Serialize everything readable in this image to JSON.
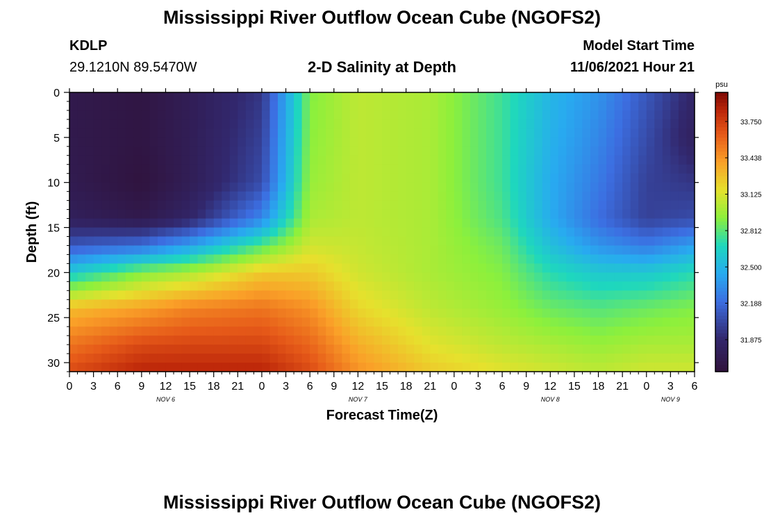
{
  "header": {
    "title": "Mississippi River Outflow Ocean Cube (NGOFS2)",
    "station_id": "KDLP",
    "station_coords": "29.1210N  89.5470W",
    "subtitle": "2-D Salinity at Depth",
    "model_start_label": "Model Start Time",
    "model_start_value": "11/06/2021 Hour 21"
  },
  "footer": {
    "title": "Mississippi River Outflow Ocean Cube (NGOFS2)"
  },
  "chart_data": {
    "type": "heatmap",
    "title": "2-D Salinity at Depth",
    "xlabel": "Forecast Time(Z)",
    "ylabel": "Depth (ft)",
    "x_tick_labels": [
      "0",
      "3",
      "6",
      "9",
      "12",
      "15",
      "18",
      "21",
      "0",
      "3",
      "6",
      "9",
      "12",
      "15",
      "18",
      "21",
      "0",
      "3",
      "6",
      "9",
      "12",
      "15",
      "18",
      "21",
      "0",
      "3",
      "6"
    ],
    "x_ticks_hours": [
      0,
      3,
      6,
      9,
      12,
      15,
      18,
      21,
      24,
      27,
      30,
      33,
      36,
      39,
      42,
      45,
      48,
      51,
      54,
      57,
      60,
      63,
      66,
      69,
      72,
      75,
      78
    ],
    "xlim_hours": [
      0,
      78
    ],
    "day_labels": [
      {
        "text": "NOV 6",
        "hour": 12
      },
      {
        "text": "NOV 7",
        "hour": 36
      },
      {
        "text": "NOV 8",
        "hour": 60
      },
      {
        "text": "NOV 9",
        "hour": 75
      }
    ],
    "y_tick_labels": [
      "0",
      "5",
      "10",
      "15",
      "20",
      "25",
      "30"
    ],
    "y_ticks": [
      0,
      5,
      10,
      15,
      20,
      25,
      30
    ],
    "ylim": [
      0,
      31
    ],
    "y_inverted": true,
    "colorbar": {
      "unit": "psu",
      "min": 31.6,
      "max": 34.0,
      "tick_values": [
        31.875,
        32.188,
        32.5,
        32.812,
        33.125,
        33.438,
        33.75
      ],
      "tick_labels": [
        "31.875",
        "32.188",
        "32.500",
        "32.812",
        "33.125",
        "33.438",
        "33.750"
      ]
    },
    "grid_cells": {
      "nx": 78,
      "ny": 31
    },
    "salinity_field": {
      "description_hours": "salinity (psu) sampled by forecast hour and depth",
      "key_hours": [
        0,
        9,
        15,
        24,
        30,
        36,
        45,
        54,
        60,
        66,
        72,
        78
      ],
      "key_depths_ft": [
        0,
        5,
        10,
        14,
        17,
        20,
        24,
        28,
        31
      ],
      "values": [
        [
          31.7,
          31.7,
          31.72,
          31.78,
          32.1,
          32.6,
          33.3,
          33.55,
          33.7
        ],
        [
          31.65,
          31.65,
          31.62,
          31.7,
          32.2,
          32.9,
          33.4,
          33.7,
          33.85
        ],
        [
          31.75,
          31.75,
          31.75,
          31.85,
          32.4,
          33.0,
          33.5,
          33.72,
          33.85
        ],
        [
          31.95,
          32.0,
          32.05,
          32.3,
          32.8,
          33.25,
          33.55,
          33.72,
          33.85
        ],
        [
          32.9,
          32.92,
          32.95,
          33.0,
          33.1,
          33.25,
          33.45,
          33.6,
          33.7
        ],
        [
          33.05,
          33.05,
          33.05,
          33.05,
          33.07,
          33.1,
          33.2,
          33.35,
          33.45
        ],
        [
          33.0,
          33.0,
          33.0,
          33.0,
          33.0,
          33.0,
          33.05,
          33.15,
          33.25
        ],
        [
          32.75,
          32.75,
          32.75,
          32.78,
          32.85,
          32.9,
          32.95,
          33.05,
          33.15
        ],
        [
          32.5,
          32.48,
          32.45,
          32.45,
          32.55,
          32.7,
          32.85,
          33.0,
          33.1
        ],
        [
          32.35,
          32.3,
          32.25,
          32.2,
          32.35,
          32.6,
          32.8,
          32.95,
          33.05
        ],
        [
          32.1,
          32.05,
          32.0,
          32.0,
          32.25,
          32.6,
          32.85,
          33.0,
          33.1
        ],
        [
          31.85,
          31.8,
          31.95,
          32.05,
          32.4,
          32.7,
          32.9,
          33.0,
          33.1
        ]
      ]
    },
    "grid": false
  }
}
